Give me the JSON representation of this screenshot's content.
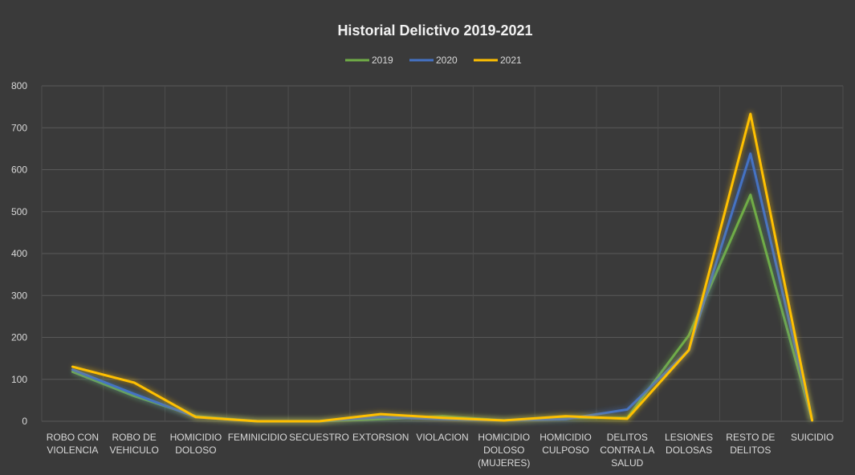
{
  "chart_data": {
    "type": "line",
    "title": "Historial Delictivo 2019-2021",
    "categories": [
      [
        "ROBO CON",
        "VIOLENCIA"
      ],
      [
        "ROBO DE",
        "VEHICULO"
      ],
      [
        "HOMICIDIO",
        "DOLOSO"
      ],
      [
        "FEMINICIDIO"
      ],
      [
        "SECUESTRO"
      ],
      [
        "EXTORSION"
      ],
      [
        "VIOLACION"
      ],
      [
        "HOMICIDIO",
        "DOLOSO",
        "(MUJERES)"
      ],
      [
        "HOMICIDIO",
        "CULPOSO"
      ],
      [
        "DELITOS",
        "CONTRA LA",
        "SALUD"
      ],
      [
        "LESIONES",
        "DOLOSAS"
      ],
      [
        "RESTO DE",
        "DELITOS"
      ],
      [
        "SUICIDIO"
      ]
    ],
    "series": [
      {
        "name": "2019",
        "color": "#70ad47",
        "values": [
          118,
          60,
          12,
          0,
          0,
          5,
          12,
          2,
          8,
          8,
          205,
          540,
          2
        ]
      },
      {
        "name": "2020",
        "color": "#4472c4",
        "values": [
          123,
          65,
          10,
          0,
          0,
          10,
          5,
          2,
          5,
          28,
          170,
          638,
          2
        ]
      },
      {
        "name": "2021",
        "color": "#ffc000",
        "values": [
          130,
          92,
          10,
          0,
          0,
          17,
          8,
          2,
          12,
          6,
          170,
          733,
          2
        ]
      }
    ],
    "yticks": [
      0,
      100,
      200,
      300,
      400,
      500,
      600,
      700,
      800
    ],
    "ylim": [
      0,
      800
    ],
    "grid": true,
    "legend": "top-center"
  }
}
